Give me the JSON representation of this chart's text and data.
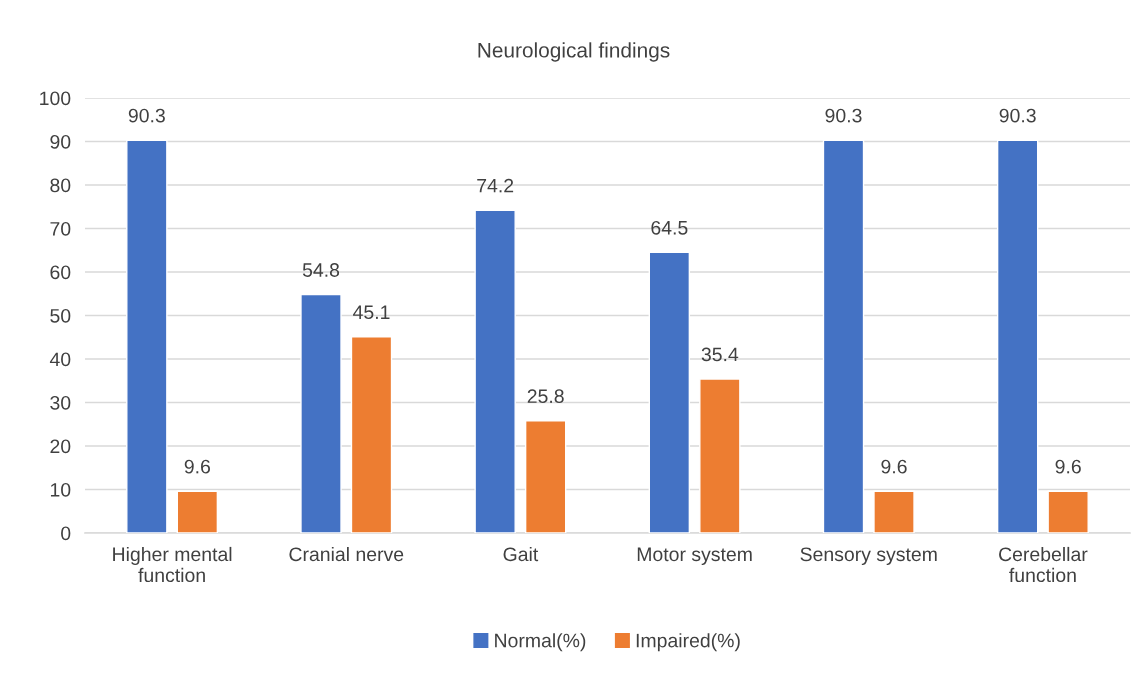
{
  "chart_data": {
    "type": "bar",
    "title": "Neurological findings",
    "categories": [
      "Higher mental\nfunction",
      "Cranial nerve",
      "Gait",
      "Motor system",
      "Sensory system",
      "Cerebellar\nfunction"
    ],
    "series": [
      {
        "name": "Normal(%)",
        "color": "#4472c4",
        "values": [
          90.3,
          54.8,
          74.2,
          64.5,
          90.3,
          90.3
        ]
      },
      {
        "name": "Impaired(%)",
        "color": "#ed7d31",
        "values": [
          9.6,
          45.1,
          25.8,
          35.4,
          9.6,
          9.6
        ]
      }
    ],
    "ylim": [
      0,
      100
    ],
    "yticks": [
      0,
      10,
      20,
      30,
      40,
      50,
      60,
      70,
      80,
      90,
      100
    ],
    "grid": "y",
    "legend": "bottom",
    "data_labels": true
  }
}
